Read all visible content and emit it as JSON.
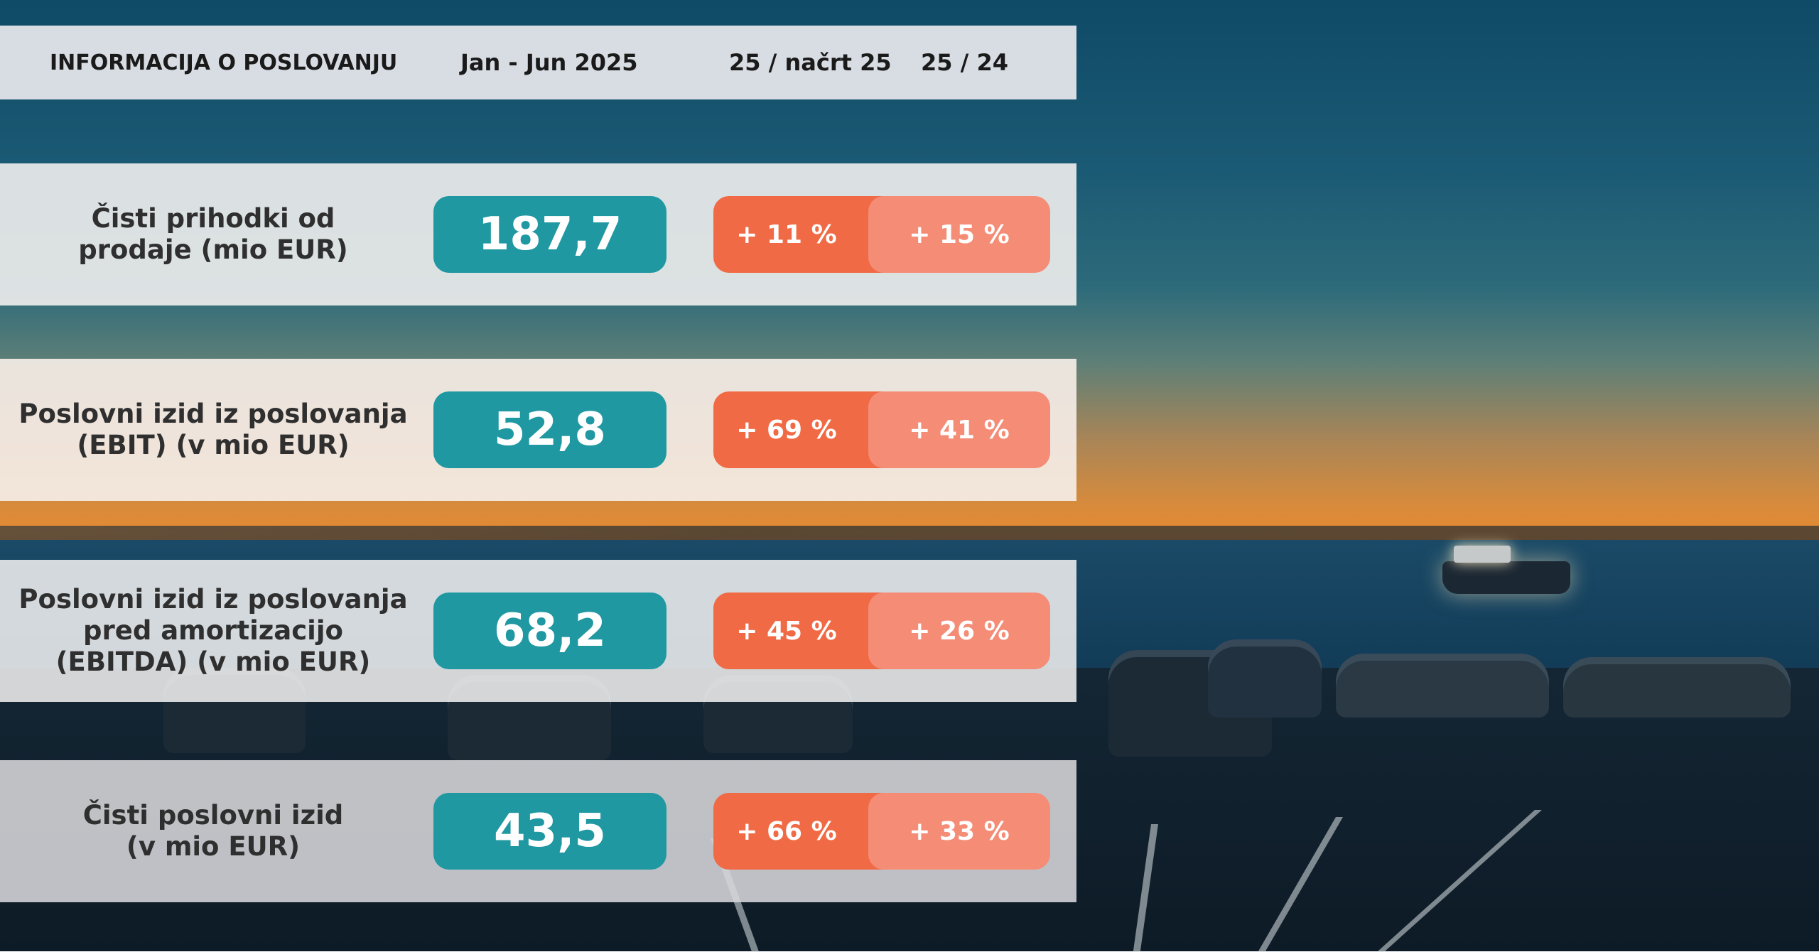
{
  "header": {
    "col_label": "INFORMACIJA O POSLOVANJU",
    "col_period": "Jan - Jun 2025",
    "col_vs_plan": "25 / načrt 25",
    "col_vs_prev": "25 / 24"
  },
  "rows": [
    {
      "label": "Čisti prihodki od\nprodaje (mio EUR)",
      "value": "187,7",
      "vs_plan": "+ 11 %",
      "vs_prev": "+ 15 %"
    },
    {
      "label": "Poslovni izid iz poslovanja\n(EBIT) (v mio EUR)",
      "value": "52,8",
      "vs_plan": "+ 69 %",
      "vs_prev": "+ 41 %"
    },
    {
      "label": "Poslovni izid iz poslovanja\npred amortizacijo\n(EBITDA) (v mio EUR)",
      "value": "68,2",
      "vs_plan": "+ 45 %",
      "vs_prev": "+ 26 %"
    },
    {
      "label": "Čisti poslovni izid\n(v mio EUR)",
      "value": "43,5",
      "vs_plan": "+ 66 %",
      "vs_prev": "+ 33 %"
    }
  ],
  "colors": {
    "value_pill": "#1f98a2",
    "vs_plan_pill": "#f06b45",
    "vs_prev_pill": "#f48c76",
    "header_band": "#d8dce3"
  }
}
